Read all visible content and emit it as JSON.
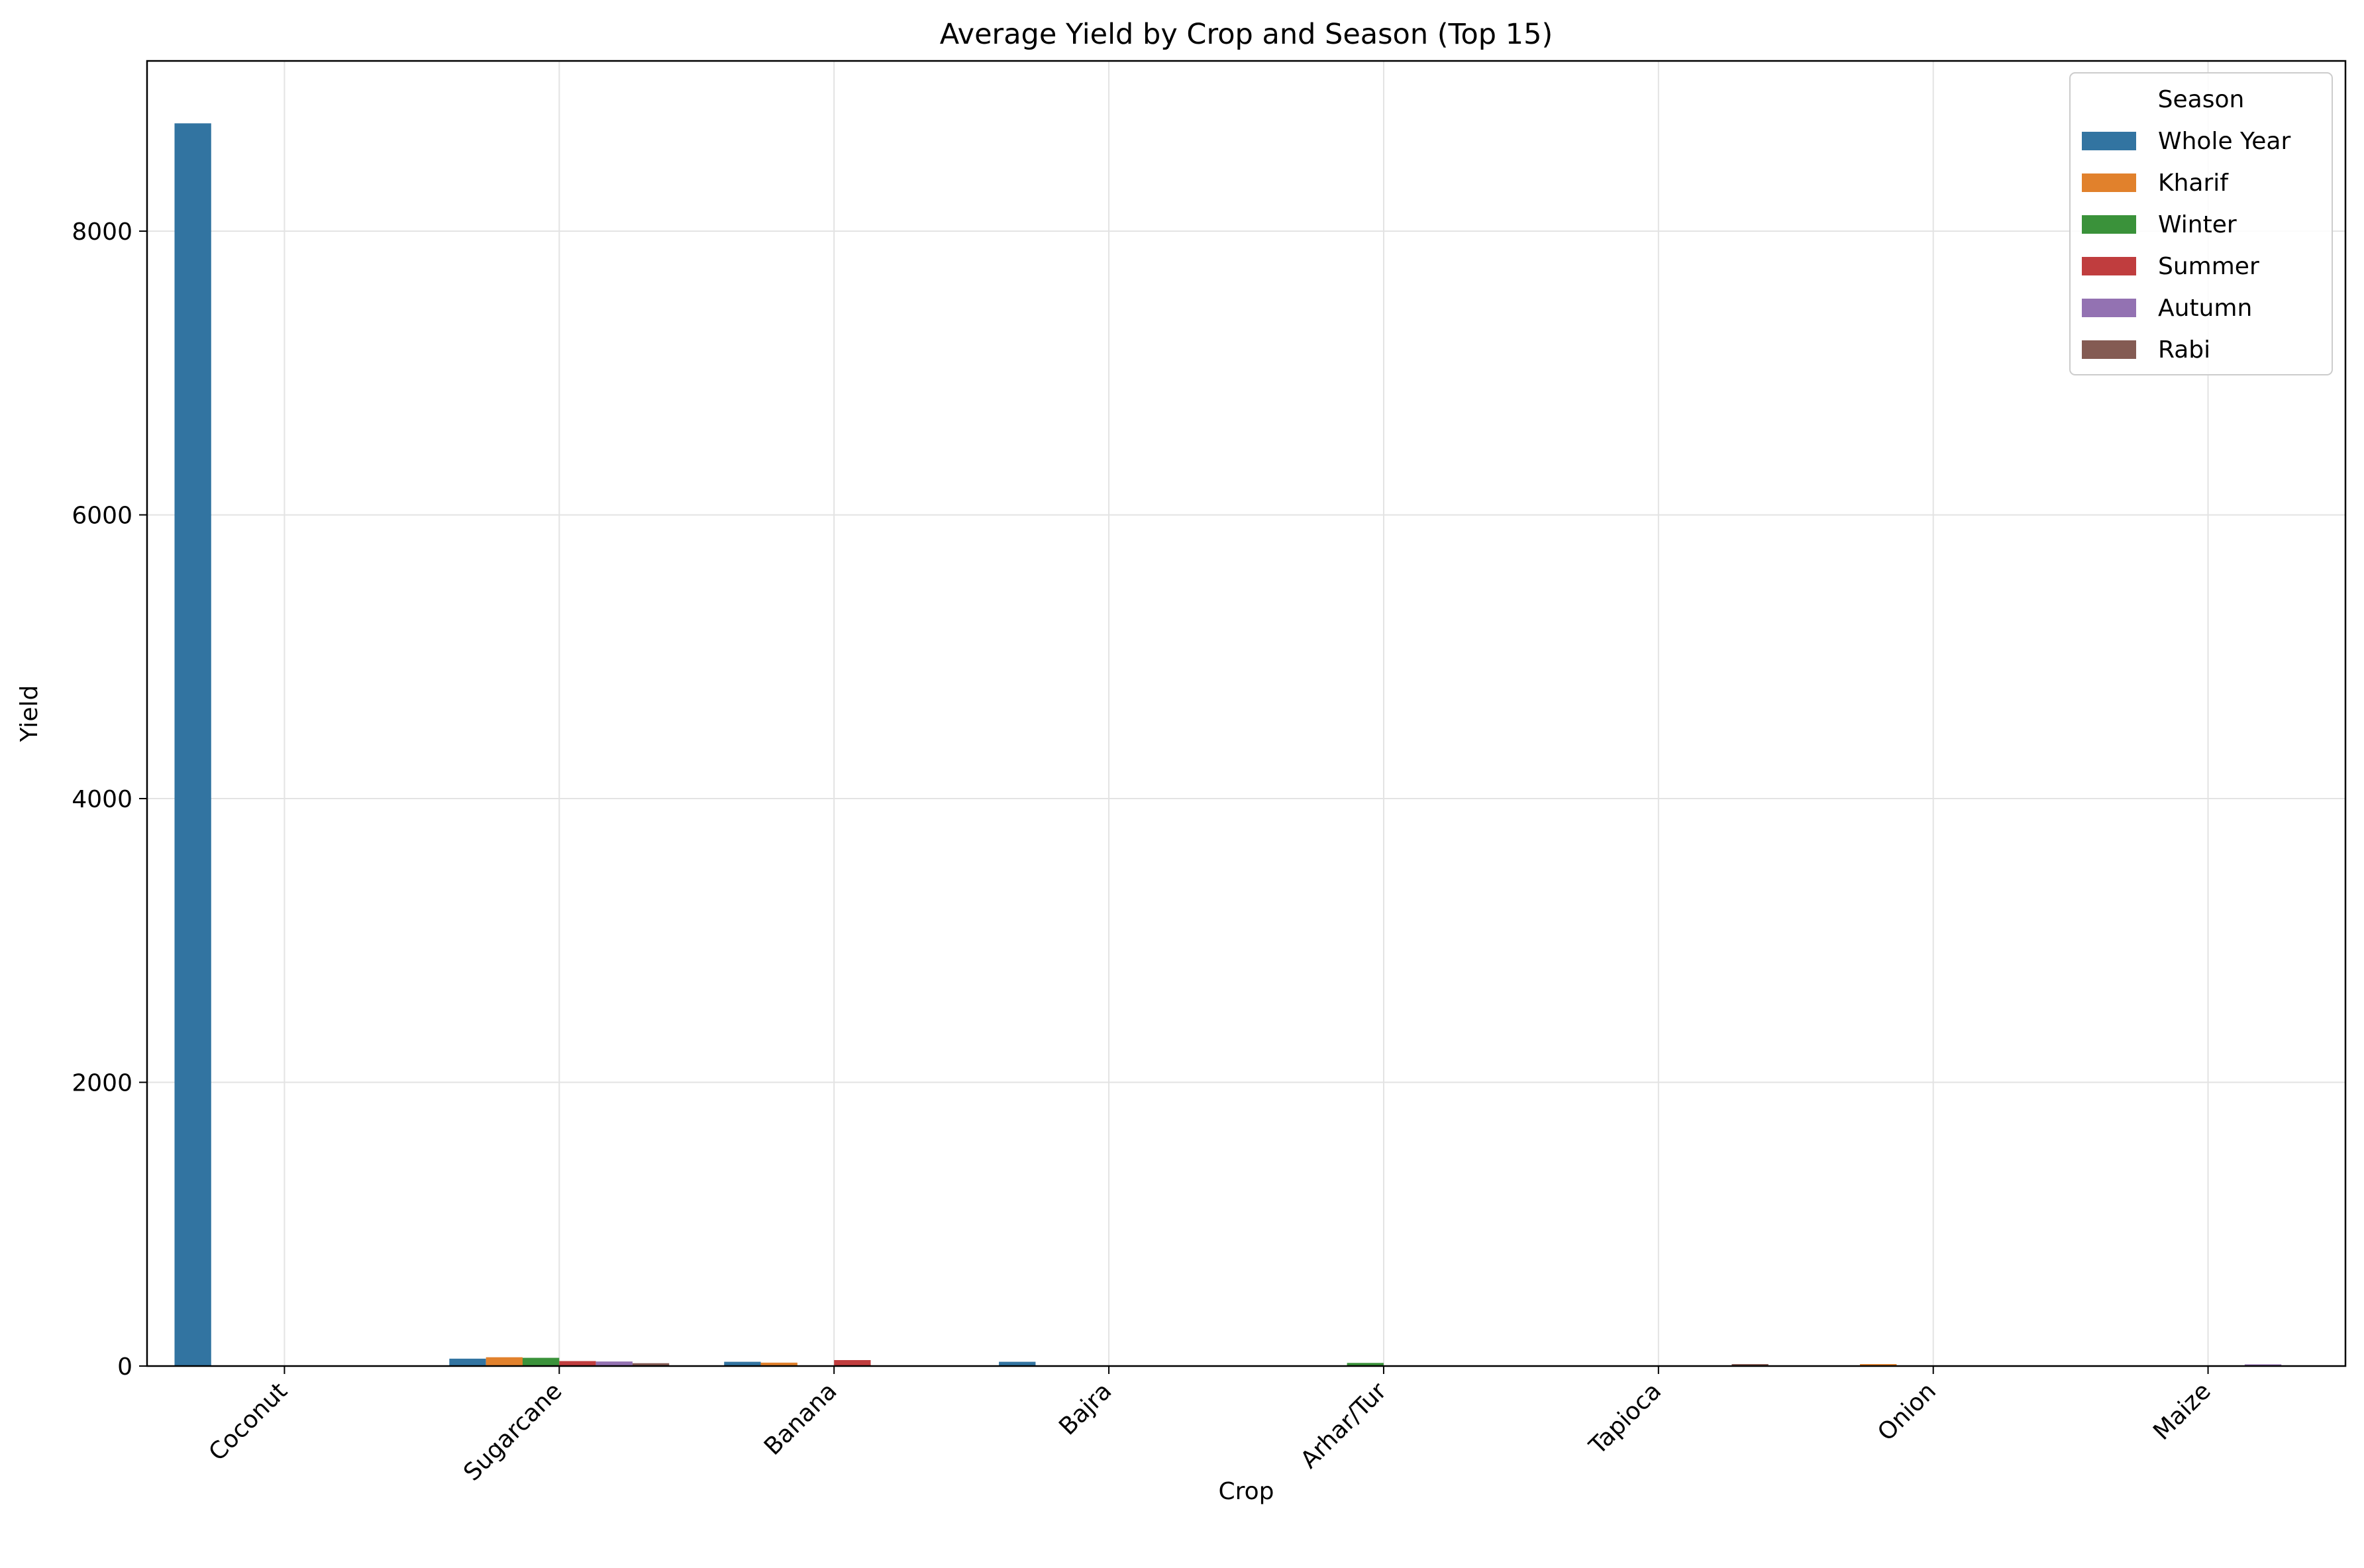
{
  "chart_data": {
    "type": "bar",
    "title": "Average Yield by Crop and Season (Top 15)",
    "xlabel": "Crop",
    "ylabel": "Yield",
    "categories": [
      "Coconut",
      "Sugarcane",
      "Banana",
      "Bajra",
      "Arhar/Tur",
      "Tapioca",
      "Onion",
      "Maize"
    ],
    "ylim": [
      0,
      9200
    ],
    "yticks": [
      0,
      2000,
      4000,
      6000,
      8000
    ],
    "grid": true,
    "legend": {
      "title": "Season",
      "placement": "top-right"
    },
    "series": [
      {
        "name": "Whole Year",
        "color": "#3274a1",
        "values": [
          8760,
          52,
          30,
          30,
          null,
          null,
          null,
          null
        ]
      },
      {
        "name": "Kharif",
        "color": "#e1812c",
        "values": [
          null,
          62,
          24,
          null,
          null,
          null,
          14,
          null
        ]
      },
      {
        "name": "Winter",
        "color": "#3a923a",
        "values": [
          null,
          58,
          null,
          null,
          22,
          null,
          null,
          null
        ]
      },
      {
        "name": "Summer",
        "color": "#c03d3e",
        "values": [
          null,
          35,
          42,
          null,
          null,
          null,
          null,
          null
        ]
      },
      {
        "name": "Autumn",
        "color": "#9372b2",
        "values": [
          null,
          32,
          null,
          null,
          null,
          null,
          null,
          12
        ]
      },
      {
        "name": "Rabi",
        "color": "#845b53",
        "values": [
          null,
          20,
          null,
          null,
          null,
          14,
          null,
          null
        ]
      }
    ]
  }
}
